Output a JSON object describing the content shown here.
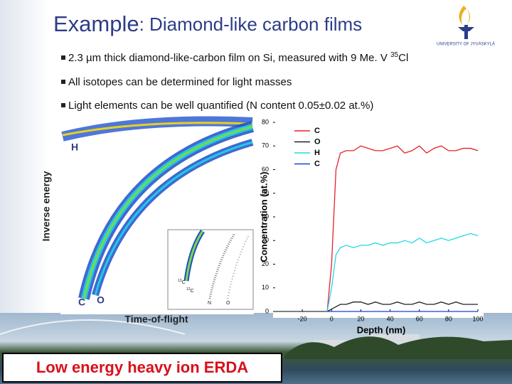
{
  "slide": {
    "title": {
      "main": "Example",
      "rest": ": Diamond-like carbon films"
    },
    "logo": "UNIVERSITY OF JYVÄSKYLÄ",
    "bullets": [
      {
        "text": "2.3 µm thick diamond-like-carbon film on Si, measured with 9 Me. V ",
        "sup": "35",
        "after": "Cl"
      },
      {
        "text": "All isotopes can be determined for light masses"
      },
      {
        "text": "Light elements can be well quantified (N content 0.05±0.02 at.%)"
      }
    ],
    "tof_image": {
      "y_label": "Inverse energy",
      "x_label": "Time-of-flight",
      "labels": [
        "H",
        "C",
        "O"
      ],
      "inset": [
        {
          "mass": "13",
          "symbol": "C"
        },
        {
          "mass": "12",
          "symbol": "C"
        },
        {
          "mass": "",
          "symbol": "N"
        },
        {
          "mass": "",
          "symbol": "O"
        }
      ]
    },
    "banner": "Low energy heavy ion ERDA"
  },
  "chart_data": {
    "type": "line",
    "x_label": "Depth (nm)",
    "y_label": "Concentration (at.%)",
    "x": [
      -3,
      0,
      3,
      6,
      10,
      15,
      20,
      25,
      30,
      35,
      40,
      45,
      50,
      55,
      60,
      65,
      70,
      75,
      80,
      85,
      90,
      95,
      100
    ],
    "series": [
      {
        "name": "C",
        "color": "#e8202a",
        "values": [
          0,
          20,
          60,
          67,
          68,
          68,
          70,
          69,
          68,
          68,
          69,
          70,
          67,
          68,
          70,
          67,
          69,
          70,
          68,
          68,
          69,
          69,
          68
        ]
      },
      {
        "name": "O",
        "color": "#222222",
        "values": [
          0,
          1,
          2,
          3,
          3,
          4,
          4,
          3,
          4,
          3,
          3,
          4,
          3,
          3,
          4,
          3,
          3,
          4,
          3,
          4,
          3,
          3,
          3
        ]
      },
      {
        "name": "H",
        "color": "#22d8e8",
        "values": [
          0,
          10,
          24,
          27,
          28,
          27,
          28,
          28,
          29,
          28,
          29,
          29,
          30,
          29,
          31,
          29,
          30,
          31,
          30,
          31,
          32,
          33,
          32
        ]
      },
      {
        "name": "C",
        "color": "#1f3fd0",
        "values": [
          0,
          0,
          0,
          0,
          0,
          0,
          0,
          0,
          0,
          0,
          0,
          0,
          0,
          0,
          0,
          0,
          0,
          0,
          0,
          0,
          0,
          0,
          0
        ]
      }
    ],
    "xlim": [
      -40,
      100
    ],
    "xticks": [
      -20,
      0,
      20,
      40,
      60,
      80,
      100
    ],
    "ylim": [
      0,
      80
    ],
    "yticks": [
      0,
      10,
      20,
      30,
      40,
      50,
      60,
      70,
      80
    ],
    "legend": "upper left"
  }
}
